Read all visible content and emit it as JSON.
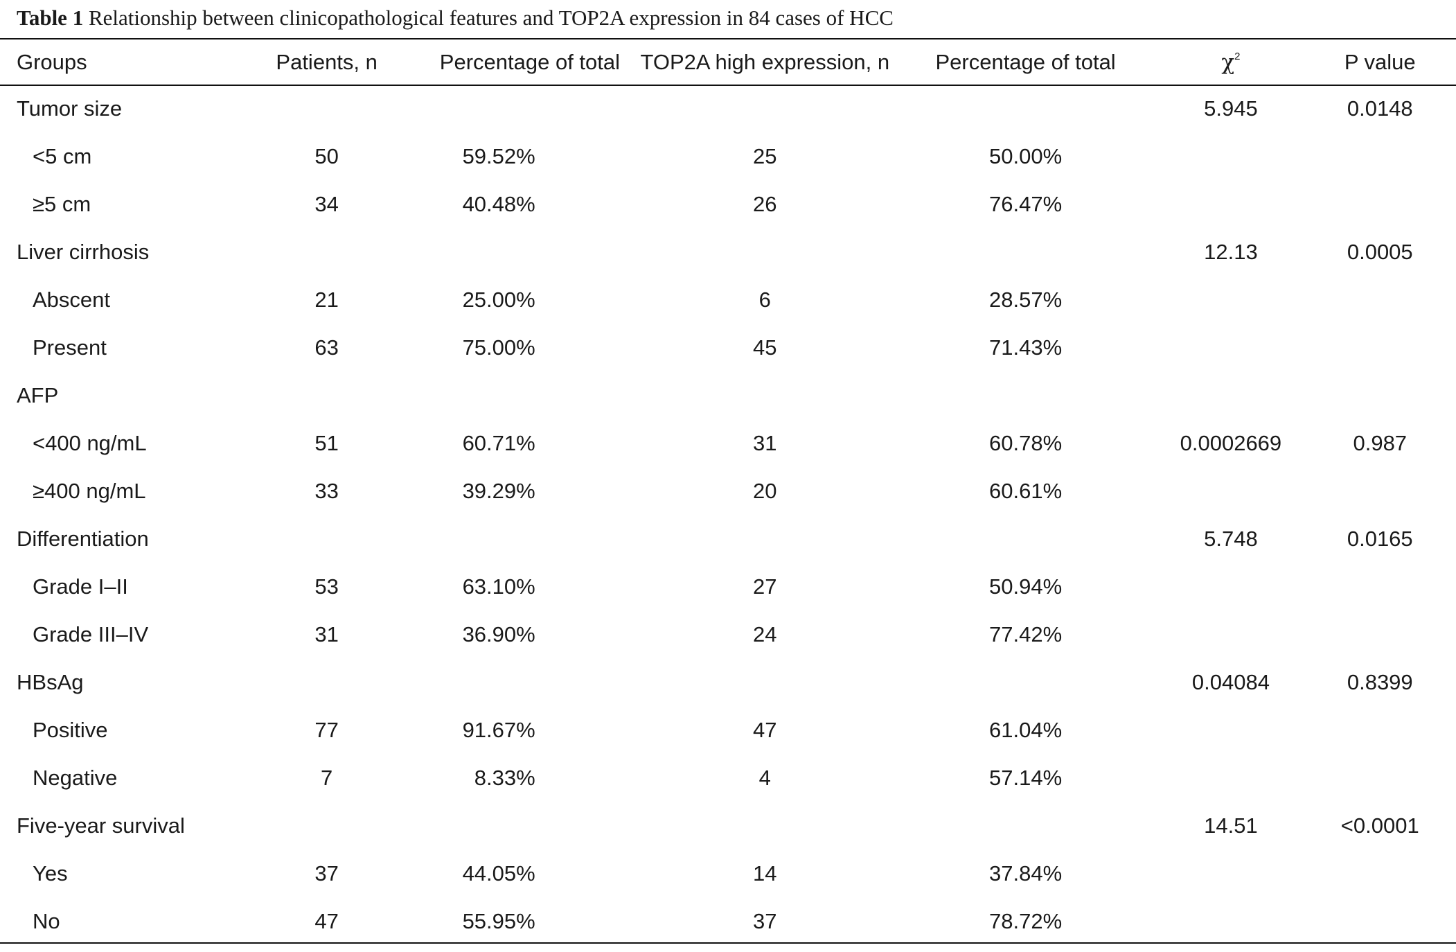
{
  "caption": {
    "label": "Table 1",
    "text": "Relationship between clinicopathological features and TOP2A expression in 84 cases of HCC"
  },
  "headers": {
    "groups": "Groups",
    "patients": "Patients, n",
    "percentage": "Percentage of total",
    "top2a_high": "TOP2A high expression, n",
    "percentage2": "Percentage of total",
    "chi_symbol": "χ",
    "chi_sup": "2",
    "p_value": "P value"
  },
  "rows": [
    {
      "group": "Tumor size",
      "sub": false,
      "patients": "",
      "pct": "",
      "top2a": "",
      "pct2": "",
      "chi": "5.945",
      "p": "0.0148"
    },
    {
      "group": "<5 cm",
      "sub": true,
      "patients": "50",
      "pct": "59.52%",
      "top2a": "25",
      "pct2": "50.00%",
      "chi": "",
      "p": ""
    },
    {
      "group": "≥5 cm",
      "sub": true,
      "patients": "34",
      "pct": "40.48%",
      "top2a": "26",
      "pct2": "76.47%",
      "chi": "",
      "p": ""
    },
    {
      "group": "Liver cirrhosis",
      "sub": false,
      "patients": "",
      "pct": "",
      "top2a": "",
      "pct2": "",
      "chi": "12.13",
      "p": "0.0005"
    },
    {
      "group": "Abscent",
      "sub": true,
      "patients": "21",
      "pct": "25.00%",
      "top2a": "6",
      "pct2": "28.57%",
      "chi": "",
      "p": ""
    },
    {
      "group": "Present",
      "sub": true,
      "patients": "63",
      "pct": "75.00%",
      "top2a": "45",
      "pct2": "71.43%",
      "chi": "",
      "p": ""
    },
    {
      "group": "AFP",
      "sub": false,
      "patients": "",
      "pct": "",
      "top2a": "",
      "pct2": "",
      "chi": "",
      "p": ""
    },
    {
      "group": "<400 ng/mL",
      "sub": true,
      "patients": "51",
      "pct": "60.71%",
      "top2a": "31",
      "pct2": "60.78%",
      "chi": "0.0002669",
      "p": "0.987"
    },
    {
      "group": "≥400 ng/mL",
      "sub": true,
      "patients": "33",
      "pct": "39.29%",
      "top2a": "20",
      "pct2": "60.61%",
      "chi": "",
      "p": ""
    },
    {
      "group": "Differentiation",
      "sub": false,
      "patients": "",
      "pct": "",
      "top2a": "",
      "pct2": "",
      "chi": "5.748",
      "p": "0.0165"
    },
    {
      "group": "Grade I–II",
      "sub": true,
      "patients": "53",
      "pct": "63.10%",
      "top2a": "27",
      "pct2": "50.94%",
      "chi": "",
      "p": ""
    },
    {
      "group": "Grade III–IV",
      "sub": true,
      "patients": "31",
      "pct": "36.90%",
      "top2a": "24",
      "pct2": "77.42%",
      "chi": "",
      "p": ""
    },
    {
      "group": "HBsAg",
      "sub": false,
      "patients": "",
      "pct": "",
      "top2a": "",
      "pct2": "",
      "chi": "0.04084",
      "p": "0.8399"
    },
    {
      "group": "Positive",
      "sub": true,
      "patients": "77",
      "pct": "91.67%",
      "top2a": "47",
      "pct2": "61.04%",
      "chi": "",
      "p": ""
    },
    {
      "group": "Negative",
      "sub": true,
      "patients": "7",
      "pct": "8.33%",
      "top2a": "4",
      "pct2": "57.14%",
      "chi": "",
      "p": ""
    },
    {
      "group": "Five-year survival",
      "sub": false,
      "patients": "",
      "pct": "",
      "top2a": "",
      "pct2": "",
      "chi": "14.51",
      "p": "<0.0001"
    },
    {
      "group": "Yes",
      "sub": true,
      "patients": "37",
      "pct": "44.05%",
      "top2a": "14",
      "pct2": "37.84%",
      "chi": "",
      "p": ""
    },
    {
      "group": "No",
      "sub": true,
      "patients": "47",
      "pct": "55.95%",
      "top2a": "37",
      "pct2": "78.72%",
      "chi": "",
      "p": ""
    }
  ]
}
